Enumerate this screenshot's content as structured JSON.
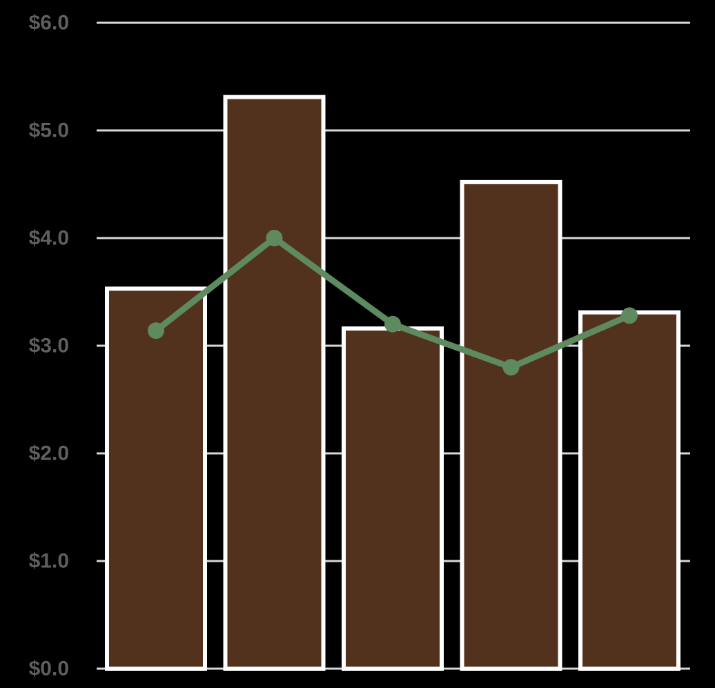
{
  "chart_data": {
    "type": "bar",
    "title": "",
    "xlabel": "",
    "ylabel": "",
    "categories": [
      "",
      "",
      "",
      "",
      ""
    ],
    "ylim": [
      0,
      6
    ],
    "grid": true,
    "y_ticks": [
      0,
      1,
      2,
      3,
      4,
      5,
      6
    ],
    "y_tick_labels": [
      "$0.0",
      "$1.0",
      "$2.0",
      "$3.0",
      "$4.0",
      "$5.0",
      "$6.0"
    ],
    "series": [
      {
        "type": "bar",
        "values": [
          3.53,
          5.31,
          3.16,
          4.52,
          3.31
        ]
      },
      {
        "type": "line",
        "values": [
          3.14,
          4.0,
          3.2,
          2.8,
          3.28
        ]
      }
    ],
    "colors": {
      "background": "#000000",
      "bar_fill": "#52311d",
      "bar_stroke": "#ffffff",
      "line": "#5e8a60",
      "grid": "#d9d9d9",
      "tick_text": "#5f5f5f"
    }
  }
}
